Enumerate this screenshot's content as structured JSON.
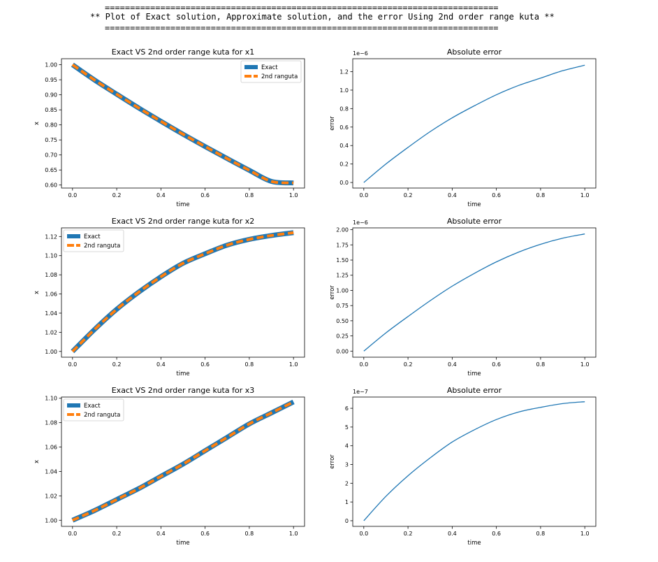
{
  "banner": {
    "rule_top": "==============================================================================",
    "title": "** Plot of Exact solution, Approximate solution, and the error Using 2nd order range kuta **",
    "rule_bottom": "=============================================================================="
  },
  "colors": {
    "exact": "#1f77b4",
    "approx": "#ff7f0e",
    "error": "#1f77b4",
    "axes": "#000000"
  },
  "chart_data": [
    {
      "type": "line",
      "title": "Exact VS 2nd order range kuta for x1",
      "xlabel": "time",
      "ylabel": "x",
      "xlim": [
        -0.05,
        1.05
      ],
      "ylim": [
        0.59,
        1.02
      ],
      "xticks": [
        0.0,
        0.2,
        0.4,
        0.6,
        0.8,
        1.0
      ],
      "xtick_labels": [
        "0.0",
        "0.2",
        "0.4",
        "0.6",
        "0.8",
        "1.0"
      ],
      "yticks": [
        0.6,
        0.65,
        0.7,
        0.75,
        0.8,
        0.85,
        0.9,
        0.95,
        1.0
      ],
      "ytick_labels": [
        "0.60",
        "0.65",
        "0.70",
        "0.75",
        "0.80",
        "0.85",
        "0.90",
        "0.95",
        "1.00"
      ],
      "legend_position": "upper right",
      "x": [
        0.0,
        0.1,
        0.2,
        0.3,
        0.4,
        0.5,
        0.6,
        0.7,
        0.8,
        0.9,
        1.0
      ],
      "series": [
        {
          "name": "Exact",
          "values": [
            1.0,
            0.949,
            0.902,
            0.856,
            0.812,
            0.769,
            0.728,
            0.688,
            0.649,
            0.612,
            0.607
          ]
        },
        {
          "name": "2nd ranguta",
          "values": [
            1.0,
            0.949,
            0.902,
            0.856,
            0.812,
            0.769,
            0.728,
            0.688,
            0.649,
            0.612,
            0.607
          ]
        }
      ],
      "grid": false
    },
    {
      "type": "line",
      "title": "Absolute error",
      "xlabel": "time",
      "ylabel": "error",
      "offset_text": "1e−6",
      "xlim": [
        -0.05,
        1.05
      ],
      "ylim": [
        -0.06,
        1.34
      ],
      "xticks": [
        0.0,
        0.2,
        0.4,
        0.6,
        0.8,
        1.0
      ],
      "xtick_labels": [
        "0.0",
        "0.2",
        "0.4",
        "0.6",
        "0.8",
        "1.0"
      ],
      "yticks": [
        0.0,
        0.2,
        0.4,
        0.6,
        0.8,
        1.0,
        1.2
      ],
      "ytick_labels": [
        "0.0",
        "0.2",
        "0.4",
        "0.6",
        "0.8",
        "1.0",
        "1.2"
      ],
      "x": [
        0.0,
        0.1,
        0.2,
        0.3,
        0.4,
        0.5,
        0.6,
        0.7,
        0.8,
        0.9,
        1.0
      ],
      "series": [
        {
          "values": [
            0.0,
            0.2,
            0.38,
            0.55,
            0.7,
            0.83,
            0.95,
            1.05,
            1.13,
            1.21,
            1.27
          ]
        }
      ],
      "grid": false
    },
    {
      "type": "line",
      "title": "Exact VS 2nd order range kuta for x2",
      "xlabel": "time",
      "ylabel": "x",
      "xlim": [
        -0.05,
        1.05
      ],
      "ylim": [
        0.994,
        1.129
      ],
      "xticks": [
        0.0,
        0.2,
        0.4,
        0.6,
        0.8,
        1.0
      ],
      "xtick_labels": [
        "0.0",
        "0.2",
        "0.4",
        "0.6",
        "0.8",
        "1.0"
      ],
      "yticks": [
        1.0,
        1.02,
        1.04,
        1.06,
        1.08,
        1.1,
        1.12
      ],
      "ytick_labels": [
        "1.00",
        "1.02",
        "1.04",
        "1.06",
        "1.08",
        "1.10",
        "1.12"
      ],
      "legend_position": "upper left",
      "x": [
        0.0,
        0.1,
        0.2,
        0.3,
        0.4,
        0.5,
        0.6,
        0.7,
        0.8,
        0.9,
        1.0
      ],
      "series": [
        {
          "name": "Exact",
          "values": [
            1.0,
            1.023,
            1.044,
            1.062,
            1.078,
            1.092,
            1.102,
            1.111,
            1.117,
            1.121,
            1.124
          ]
        },
        {
          "name": "2nd ranguta",
          "values": [
            1.0,
            1.023,
            1.044,
            1.062,
            1.078,
            1.092,
            1.102,
            1.111,
            1.117,
            1.121,
            1.124
          ]
        }
      ],
      "grid": false
    },
    {
      "type": "line",
      "title": "Absolute error",
      "xlabel": "time",
      "ylabel": "error",
      "offset_text": "1e−6",
      "xlim": [
        -0.05,
        1.05
      ],
      "ylim": [
        -0.1,
        2.03
      ],
      "xticks": [
        0.0,
        0.2,
        0.4,
        0.6,
        0.8,
        1.0
      ],
      "xtick_labels": [
        "0.0",
        "0.2",
        "0.4",
        "0.6",
        "0.8",
        "1.0"
      ],
      "yticks": [
        0.0,
        0.25,
        0.5,
        0.75,
        1.0,
        1.25,
        1.5,
        1.75,
        2.0
      ],
      "ytick_labels": [
        "0.00",
        "0.25",
        "0.50",
        "0.75",
        "1.00",
        "1.25",
        "1.50",
        "1.75",
        "2.00"
      ],
      "x": [
        0.0,
        0.1,
        0.2,
        0.3,
        0.4,
        0.5,
        0.6,
        0.7,
        0.8,
        0.9,
        1.0
      ],
      "series": [
        {
          "values": [
            0.0,
            0.3,
            0.57,
            0.83,
            1.07,
            1.28,
            1.47,
            1.63,
            1.76,
            1.86,
            1.93
          ]
        }
      ],
      "grid": false
    },
    {
      "type": "line",
      "title": "Exact VS 2nd order range kuta for x3",
      "xlabel": "time",
      "ylabel": "x",
      "xlim": [
        -0.05,
        1.05
      ],
      "ylim": [
        0.995,
        1.101
      ],
      "xticks": [
        0.0,
        0.2,
        0.4,
        0.6,
        0.8,
        1.0
      ],
      "xtick_labels": [
        "0.0",
        "0.2",
        "0.4",
        "0.6",
        "0.8",
        "1.0"
      ],
      "yticks": [
        1.0,
        1.02,
        1.04,
        1.06,
        1.08,
        1.1
      ],
      "ytick_labels": [
        "1.00",
        "1.02",
        "1.04",
        "1.06",
        "1.08",
        "1.10"
      ],
      "legend_position": "upper left",
      "x": [
        0.0,
        0.1,
        0.2,
        0.3,
        0.4,
        0.5,
        0.6,
        0.7,
        0.8,
        0.9,
        1.0
      ],
      "series": [
        {
          "name": "Exact",
          "values": [
            1.0,
            1.008,
            1.017,
            1.026,
            1.036,
            1.046,
            1.057,
            1.068,
            1.079,
            1.088,
            1.097
          ]
        },
        {
          "name": "2nd ranguta",
          "values": [
            1.0,
            1.008,
            1.017,
            1.026,
            1.036,
            1.046,
            1.057,
            1.068,
            1.079,
            1.088,
            1.097
          ]
        }
      ],
      "grid": false
    },
    {
      "type": "line",
      "title": "Absolute error",
      "xlabel": "time",
      "ylabel": "error",
      "offset_text": "1e−7",
      "xlim": [
        -0.05,
        1.05
      ],
      "ylim": [
        -0.3,
        6.6
      ],
      "xticks": [
        0.0,
        0.2,
        0.4,
        0.6,
        0.8,
        1.0
      ],
      "xtick_labels": [
        "0.0",
        "0.2",
        "0.4",
        "0.6",
        "0.8",
        "1.0"
      ],
      "yticks": [
        0,
        1,
        2,
        3,
        4,
        5,
        6
      ],
      "ytick_labels": [
        "0",
        "1",
        "2",
        "3",
        "4",
        "5",
        "6"
      ],
      "x": [
        0.0,
        0.1,
        0.2,
        0.3,
        0.4,
        0.5,
        0.6,
        0.7,
        0.8,
        0.9,
        1.0
      ],
      "series": [
        {
          "values": [
            0.0,
            1.3,
            2.4,
            3.35,
            4.2,
            4.85,
            5.4,
            5.8,
            6.05,
            6.25,
            6.35
          ]
        }
      ],
      "grid": false
    }
  ]
}
